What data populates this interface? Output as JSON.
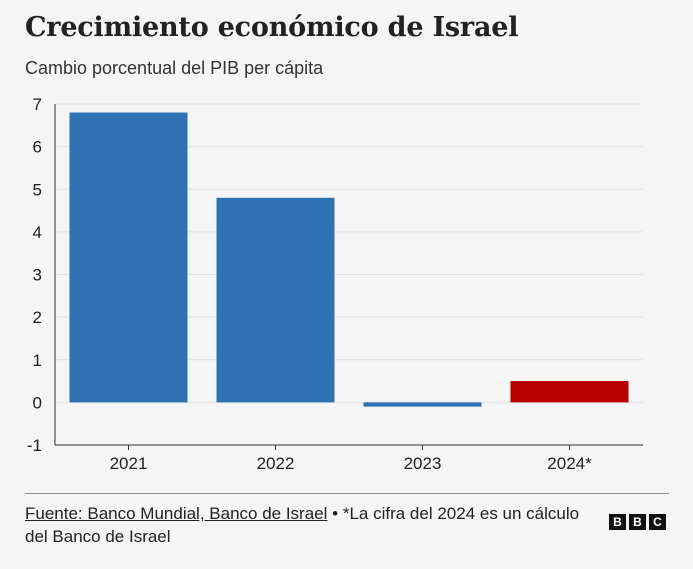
{
  "title": "Crecimiento económico de Israel",
  "subtitle": "Cambio porcentual del PIB per cápita",
  "chart_data": {
    "type": "bar",
    "title": "Crecimiento económico de Israel",
    "subtitle": "Cambio porcentual del PIB per cápita",
    "categories": [
      "2021",
      "2022",
      "2023",
      "2024*"
    ],
    "values": [
      6.8,
      4.8,
      -0.1,
      0.5
    ],
    "bar_colors": [
      "#2e72b4",
      "#2e72b4",
      "#2e72b4",
      "#b80000"
    ],
    "xlabel": "",
    "ylabel": "",
    "ylim": [
      -1,
      7
    ],
    "yticks": [
      -1,
      0,
      1,
      2,
      3,
      4,
      5,
      6,
      7
    ],
    "grid": true
  },
  "colors": {
    "bar": "#2e72b4",
    "estimate": "#b80000",
    "grid": "#e3e3e3",
    "axis": "#333333",
    "text": "#222222"
  },
  "footer": {
    "source": "Fuente: Banco Mundial, Banco de Israel",
    "separator": "•",
    "note": "*La cifra del 2024 es un cálculo del Banco de Israel"
  },
  "logo": {
    "letters": [
      "B",
      "B",
      "C"
    ]
  }
}
